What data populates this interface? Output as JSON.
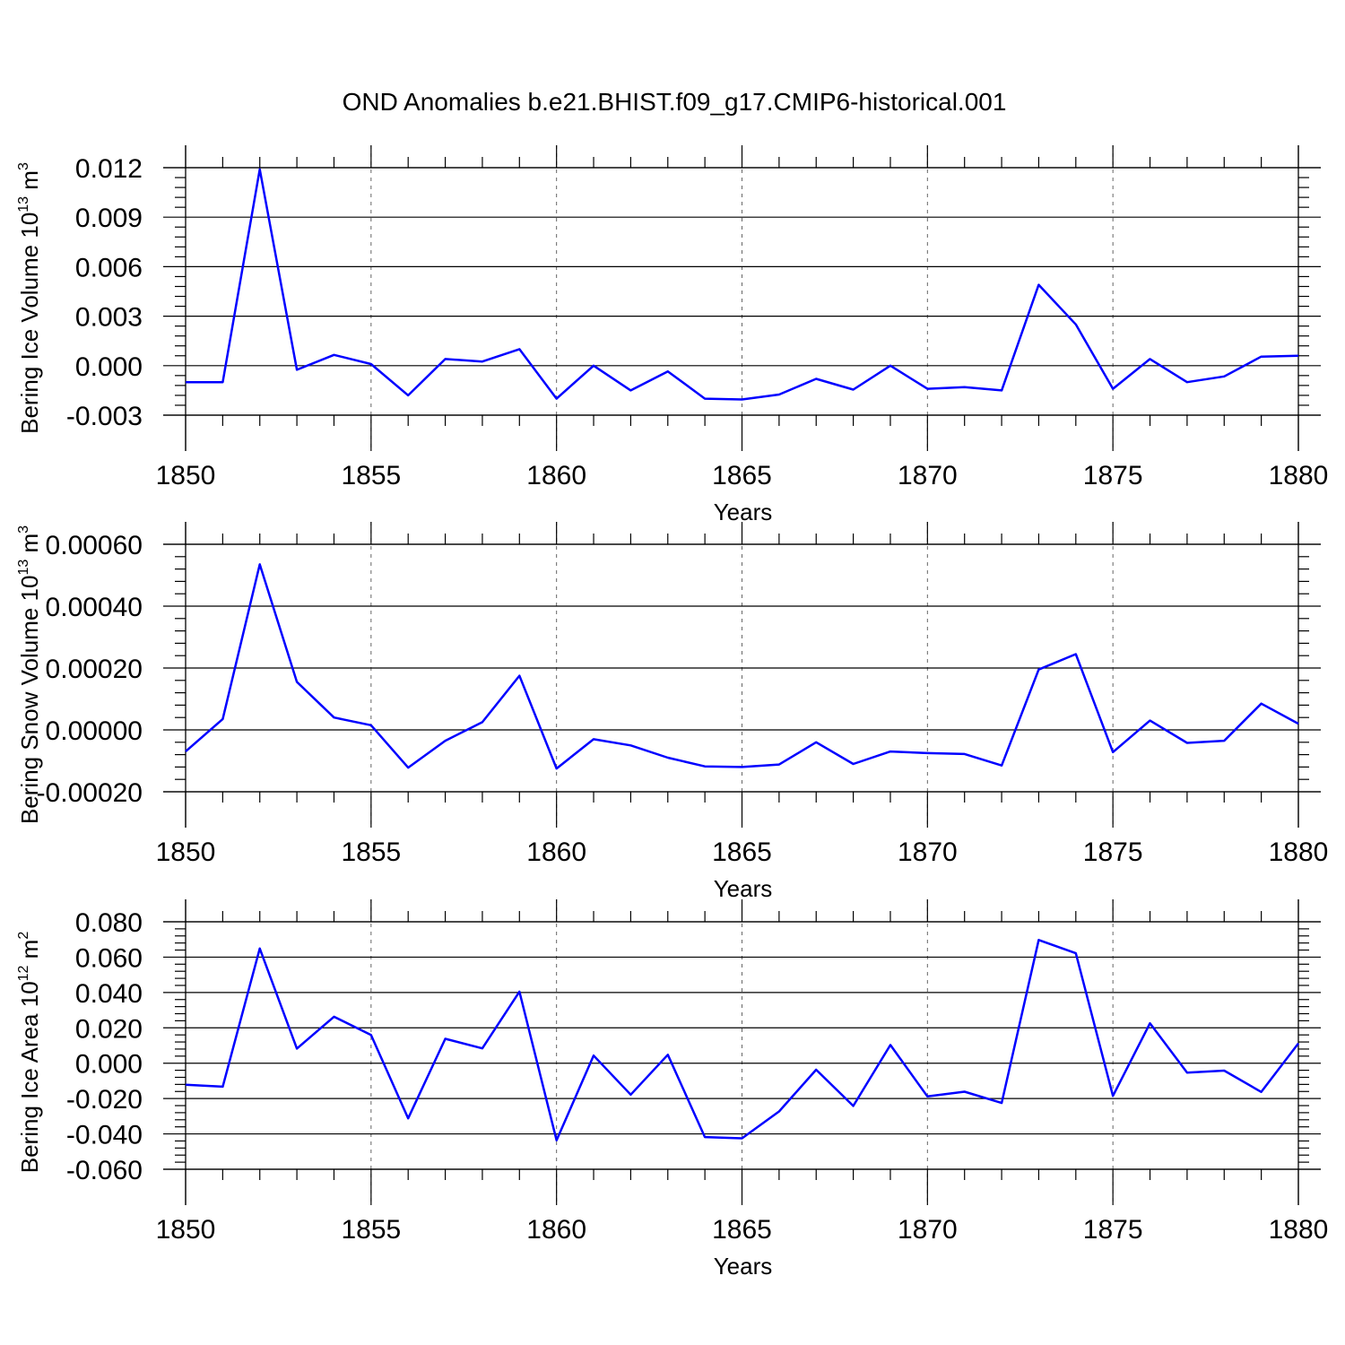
{
  "figure": {
    "title": "OND Anomalies b.e21.BHIST.f09_g17.CMIP6-historical.001",
    "line_color": "#0000ff"
  },
  "chart_data": [
    {
      "type": "line",
      "ylabel": {
        "base": "Bering Ice Volume 10",
        "exp": "13",
        "unit": " m",
        "unit_exp": "3"
      },
      "xlabel": "Years",
      "xlim": [
        1850,
        1880
      ],
      "ylim": [
        -0.003,
        0.012
      ],
      "xticks": [
        1850,
        1855,
        1860,
        1865,
        1870,
        1875,
        1880
      ],
      "xtick_labels": [
        "1850",
        "1855",
        "1860",
        "1865",
        "1870",
        "1875",
        "1880"
      ],
      "yticks": [
        0.012,
        0.009,
        0.006,
        0.003,
        0.0,
        -0.003
      ],
      "ytick_labels": [
        "0.012",
        "0.009",
        "0.006",
        "0.003",
        "0.000",
        "-0.003"
      ],
      "x": [
        1850,
        1851,
        1852,
        1853,
        1854,
        1855,
        1856,
        1857,
        1858,
        1859,
        1860,
        1861,
        1862,
        1863,
        1864,
        1865,
        1866,
        1867,
        1868,
        1869,
        1870,
        1871,
        1872,
        1873,
        1874,
        1875,
        1876,
        1877,
        1878,
        1879,
        1880
      ],
      "values": [
        -0.001,
        -0.001,
        0.0119,
        -0.00025,
        0.00065,
        0.0001,
        -0.0018,
        0.0004,
        0.00025,
        0.001,
        -0.002,
        0.0,
        -0.0015,
        -0.00035,
        -0.002,
        -0.00205,
        -0.00175,
        -0.0008,
        -0.00145,
        0.0,
        -0.0014,
        -0.0013,
        -0.0015,
        0.0049,
        0.0025,
        -0.0014,
        0.0004,
        -0.001,
        -0.00065,
        0.00055,
        0.0006
      ]
    },
    {
      "type": "line",
      "ylabel": {
        "base": "Bering Snow Volume 10",
        "exp": "13",
        "unit": " m",
        "unit_exp": "3"
      },
      "xlabel": "Years",
      "xlim": [
        1850,
        1880
      ],
      "ylim": [
        -0.0002,
        0.0006
      ],
      "xticks": [
        1850,
        1855,
        1860,
        1865,
        1870,
        1875,
        1880
      ],
      "xtick_labels": [
        "1850",
        "1855",
        "1860",
        "1865",
        "1870",
        "1875",
        "1880"
      ],
      "yticks": [
        0.0006,
        0.0004,
        0.0002,
        0.0,
        -0.0002
      ],
      "ytick_labels": [
        "0.00060",
        "0.00040",
        "0.00020",
        "0.00000",
        "-0.00020"
      ],
      "x": [
        1850,
        1851,
        1852,
        1853,
        1854,
        1855,
        1856,
        1857,
        1858,
        1859,
        1860,
        1861,
        1862,
        1863,
        1864,
        1865,
        1866,
        1867,
        1868,
        1869,
        1870,
        1871,
        1872,
        1873,
        1874,
        1875,
        1876,
        1877,
        1878,
        1879,
        1880
      ],
      "values": [
        -7e-05,
        3.5e-05,
        0.000535,
        0.000155,
        4e-05,
        1.5e-05,
        -0.000122,
        -3.5e-05,
        2.5e-05,
        0.000175,
        -0.000125,
        -3e-05,
        -5e-05,
        -9e-05,
        -0.000118,
        -0.00012,
        -0.000112,
        -4e-05,
        -0.00011,
        -7e-05,
        -7.5e-05,
        -7.8e-05,
        -0.000115,
        0.000195,
        0.000245,
        -7.2e-05,
        3e-05,
        -4.2e-05,
        -3.5e-05,
        8.5e-05,
        2e-05
      ]
    },
    {
      "type": "line",
      "ylabel": {
        "base": "Bering Ice Area 10",
        "exp": "12",
        "unit": " m",
        "unit_exp": "2"
      },
      "xlabel": "Years",
      "xlim": [
        1850,
        1880
      ],
      "ylim": [
        -0.06,
        0.08
      ],
      "xticks": [
        1850,
        1855,
        1860,
        1865,
        1870,
        1875,
        1880
      ],
      "xtick_labels": [
        "1850",
        "1855",
        "1860",
        "1865",
        "1870",
        "1875",
        "1880"
      ],
      "yticks": [
        0.08,
        0.06,
        0.04,
        0.02,
        0.0,
        -0.02,
        -0.04,
        -0.06
      ],
      "ytick_labels": [
        "0.080",
        "0.060",
        "0.040",
        "0.020",
        "0.000",
        "-0.020",
        "-0.040",
        "-0.060"
      ],
      "x": [
        1850,
        1851,
        1852,
        1853,
        1854,
        1855,
        1856,
        1857,
        1858,
        1859,
        1860,
        1861,
        1862,
        1863,
        1864,
        1865,
        1866,
        1867,
        1868,
        1869,
        1870,
        1871,
        1872,
        1873,
        1874,
        1875,
        1876,
        1877,
        1878,
        1879,
        1880
      ],
      "values": [
        -0.0122,
        -0.0133,
        0.0649,
        0.0083,
        0.0263,
        0.016,
        -0.0312,
        0.0138,
        0.0084,
        0.0405,
        -0.0436,
        0.0043,
        -0.0178,
        0.0048,
        -0.0418,
        -0.0425,
        -0.0273,
        -0.0037,
        -0.0242,
        0.0103,
        -0.0188,
        -0.0161,
        -0.0225,
        0.0697,
        0.0622,
        -0.0185,
        0.0226,
        -0.0053,
        -0.0042,
        -0.0163,
        0.0112
      ]
    }
  ]
}
